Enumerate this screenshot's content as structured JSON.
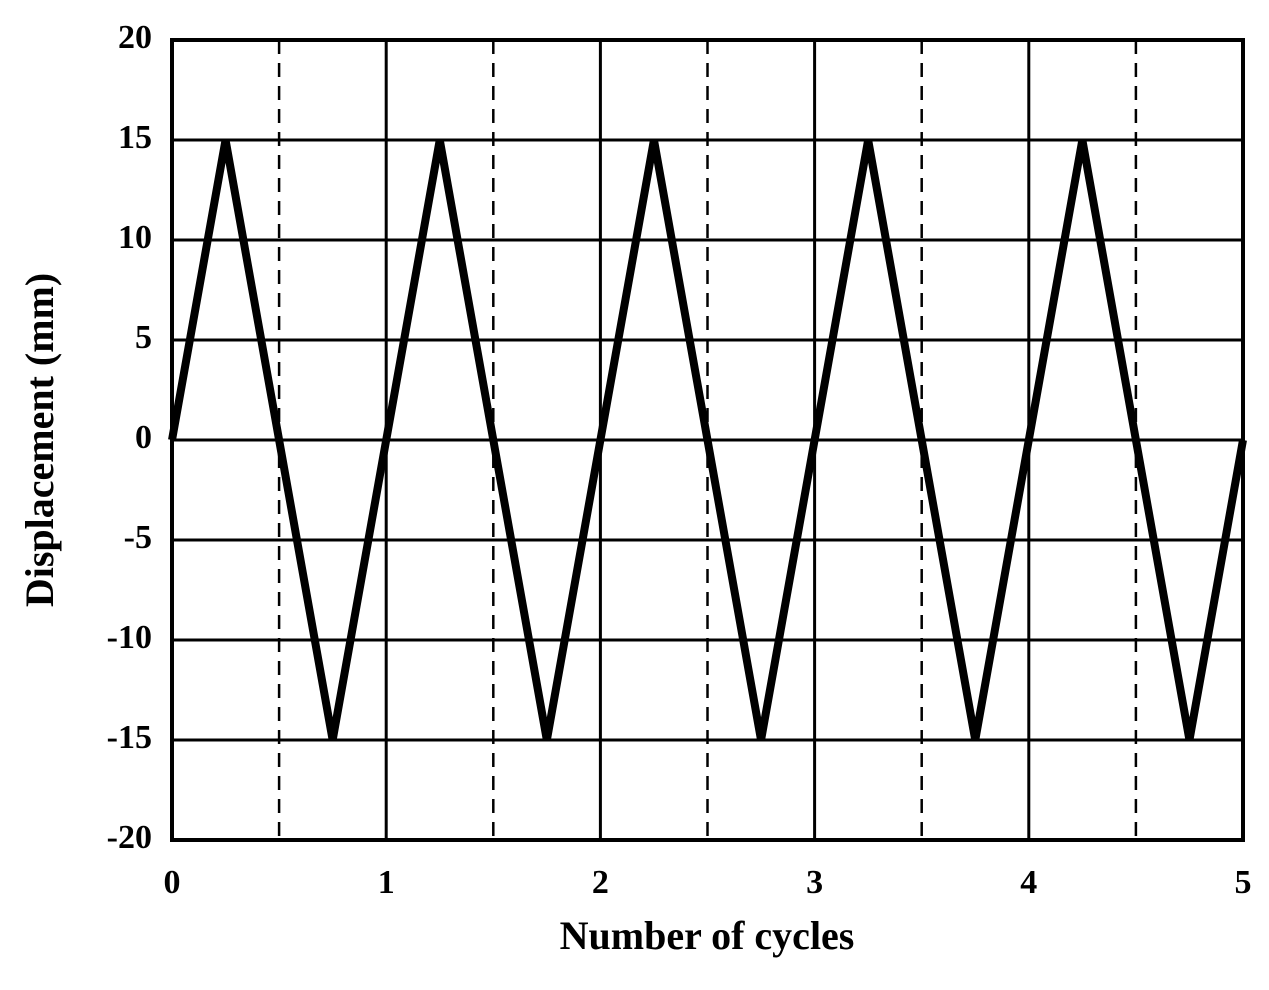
{
  "chart_data": {
    "type": "line",
    "x_label": "Number of cycles",
    "y_label": "Displacement (mm)",
    "x": [
      0,
      0.25,
      0.75,
      1.25,
      1.75,
      2.25,
      2.75,
      3.25,
      3.75,
      4.25,
      4.75,
      5
    ],
    "values": [
      0,
      15,
      -15,
      15,
      -15,
      15,
      -15,
      15,
      -15,
      15,
      -15,
      0
    ],
    "color": "#000000",
    "xlim": [
      0,
      5
    ],
    "xticks": [
      0,
      1,
      2,
      3,
      4,
      5
    ],
    "ylim": [
      -20,
      20
    ],
    "yticks": [
      -20,
      -15,
      -10,
      -5,
      0,
      5,
      10,
      15,
      20
    ],
    "grid": true,
    "x_minor_gridlines": [
      0.5,
      1.5,
      2.5,
      3.5,
      4.5
    ]
  }
}
